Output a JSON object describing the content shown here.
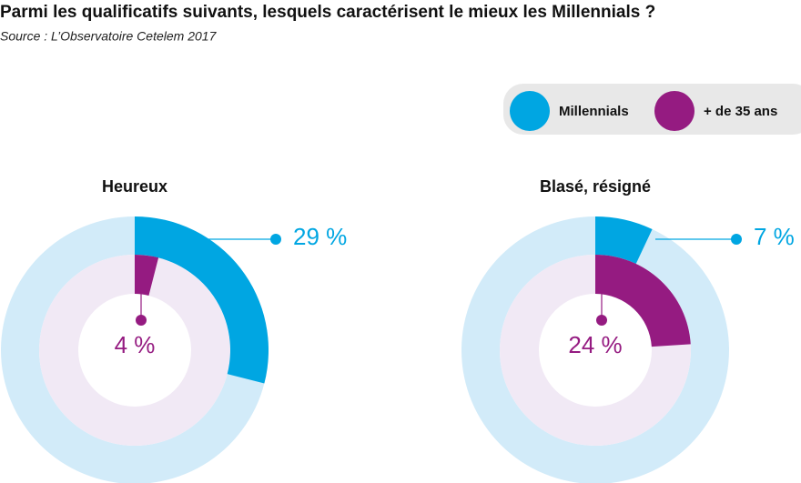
{
  "title": "Parmi les qualificatifs suivants, lesquels caractérisent le mieux les Millennials ?",
  "source": "Source : L’Observatoire Cetelem 2017",
  "chart_data": [
    {
      "type": "ring",
      "title": "Heureux",
      "series": [
        {
          "name": "Millennials",
          "color": "#00a6e2",
          "track_color": "#d2ebf9",
          "values": [
            29
          ],
          "value_labels": [
            "29 %"
          ]
        },
        {
          "name": "+ de 35 ans",
          "color": "#951b81",
          "track_color": "#f1e9f5",
          "values": [
            4
          ],
          "value_labels": [
            "4 %"
          ]
        }
      ]
    },
    {
      "type": "ring",
      "title": "Blasé, résigné",
      "series": [
        {
          "name": "Millennials",
          "color": "#00a6e2",
          "track_color": "#d2ebf9",
          "values": [
            7
          ],
          "value_labels": [
            "7 %"
          ]
        },
        {
          "name": "+ de 35 ans",
          "color": "#951b81",
          "track_color": "#f1e9f5",
          "values": [
            24
          ],
          "value_labels": [
            "24 %"
          ]
        }
      ]
    }
  ]
}
